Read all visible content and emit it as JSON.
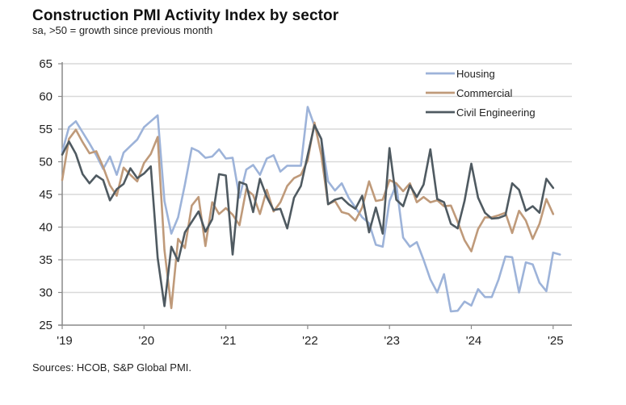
{
  "chart_data": {
    "type": "line",
    "title": "Construction PMI Activity Index by sector",
    "subtitle": "sa, >50 = growth since previous month",
    "source": "Sources: HCOB, S&P Global PMI.",
    "xlabel": "",
    "ylabel": "",
    "ylim": [
      25,
      65
    ],
    "yticks": [
      25,
      30,
      35,
      40,
      45,
      50,
      55,
      60,
      65
    ],
    "xticks": [
      "'19",
      "'20",
      "'21",
      "'22",
      "'23",
      "'24",
      "'25"
    ],
    "x_start": "2019-01",
    "x_frequency": "monthly",
    "grid": true,
    "legend_position": "top-right",
    "series": [
      {
        "name": "Housing",
        "color": "#9db3d9",
        "values": [
          51.5,
          55.3,
          56.2,
          54.5,
          52.8,
          51.0,
          48.9,
          50.8,
          48.0,
          51.4,
          52.4,
          53.4,
          55.3,
          56.2,
          57.1,
          44.0,
          39.0,
          41.5,
          46.5,
          52.1,
          51.6,
          50.6,
          50.8,
          51.9,
          50.5,
          50.6,
          44.5,
          48.8,
          49.5,
          48.0,
          50.5,
          51.0,
          48.5,
          49.4,
          49.4,
          49.4,
          58.4,
          55.5,
          53.5,
          47.0,
          45.6,
          46.7,
          44.5,
          43.0,
          41.5,
          40.6,
          37.3,
          37.0,
          44.0,
          46.5,
          38.4,
          37.0,
          37.7,
          35.0,
          32.0,
          30.0,
          32.8,
          27.1,
          27.2,
          28.6,
          28.0,
          30.5,
          29.3,
          29.3,
          32.0,
          35.5,
          35.4,
          30.0,
          34.6,
          34.3,
          31.5,
          30.2,
          36.1,
          35.8
        ]
      },
      {
        "name": "Commercial",
        "color": "#bf9a7a",
        "values": [
          47.2,
          53.5,
          54.9,
          53.0,
          51.3,
          51.6,
          49.2,
          46.4,
          44.8,
          49.1,
          48.0,
          47.0,
          49.8,
          51.2,
          53.8,
          36.5,
          27.6,
          38.2,
          36.8,
          43.3,
          44.6,
          37.1,
          43.8,
          42.0,
          42.9,
          41.9,
          40.3,
          45.8,
          44.9,
          42.0,
          45.7,
          42.4,
          43.8,
          46.3,
          47.5,
          48.0,
          50.2,
          56.0,
          51.0,
          43.5,
          44.0,
          42.3,
          42.0,
          41.0,
          43.0,
          47.0,
          44.0,
          44.2,
          47.2,
          46.7,
          45.5,
          46.7,
          43.8,
          44.6,
          43.8,
          44.1,
          43.2,
          43.3,
          40.8,
          38.0,
          36.3,
          39.7,
          41.5,
          41.5,
          41.8,
          42.2,
          39.1,
          42.5,
          41.0,
          38.2,
          40.5,
          44.3,
          42.0
        ]
      },
      {
        "name": "Civil Engineering",
        "color": "#4f5a61",
        "values": [
          51.1,
          53.1,
          51.2,
          48.1,
          46.7,
          47.9,
          47.2,
          44.1,
          45.8,
          46.6,
          49.0,
          47.5,
          48.2,
          49.3,
          35.3,
          27.9,
          37.0,
          34.8,
          39.2,
          40.8,
          42.4,
          39.3,
          41.2,
          48.1,
          47.9,
          35.8,
          46.9,
          46.5,
          42.3,
          47.4,
          44.6,
          42.6,
          42.8,
          39.8,
          44.5,
          46.3,
          51.0,
          55.6,
          53.5,
          43.5,
          44.2,
          44.5,
          43.5,
          42.8,
          44.8,
          39.2,
          43.0,
          39.0,
          52.1,
          44.2,
          43.2,
          46.4,
          44.6,
          46.5,
          51.9,
          44.3,
          43.8,
          40.5,
          39.8,
          44.0,
          49.7,
          44.5,
          42.2,
          41.3,
          41.4,
          41.8,
          46.7,
          45.7,
          42.5,
          43.2,
          42.2,
          47.4,
          46.0
        ]
      }
    ]
  }
}
